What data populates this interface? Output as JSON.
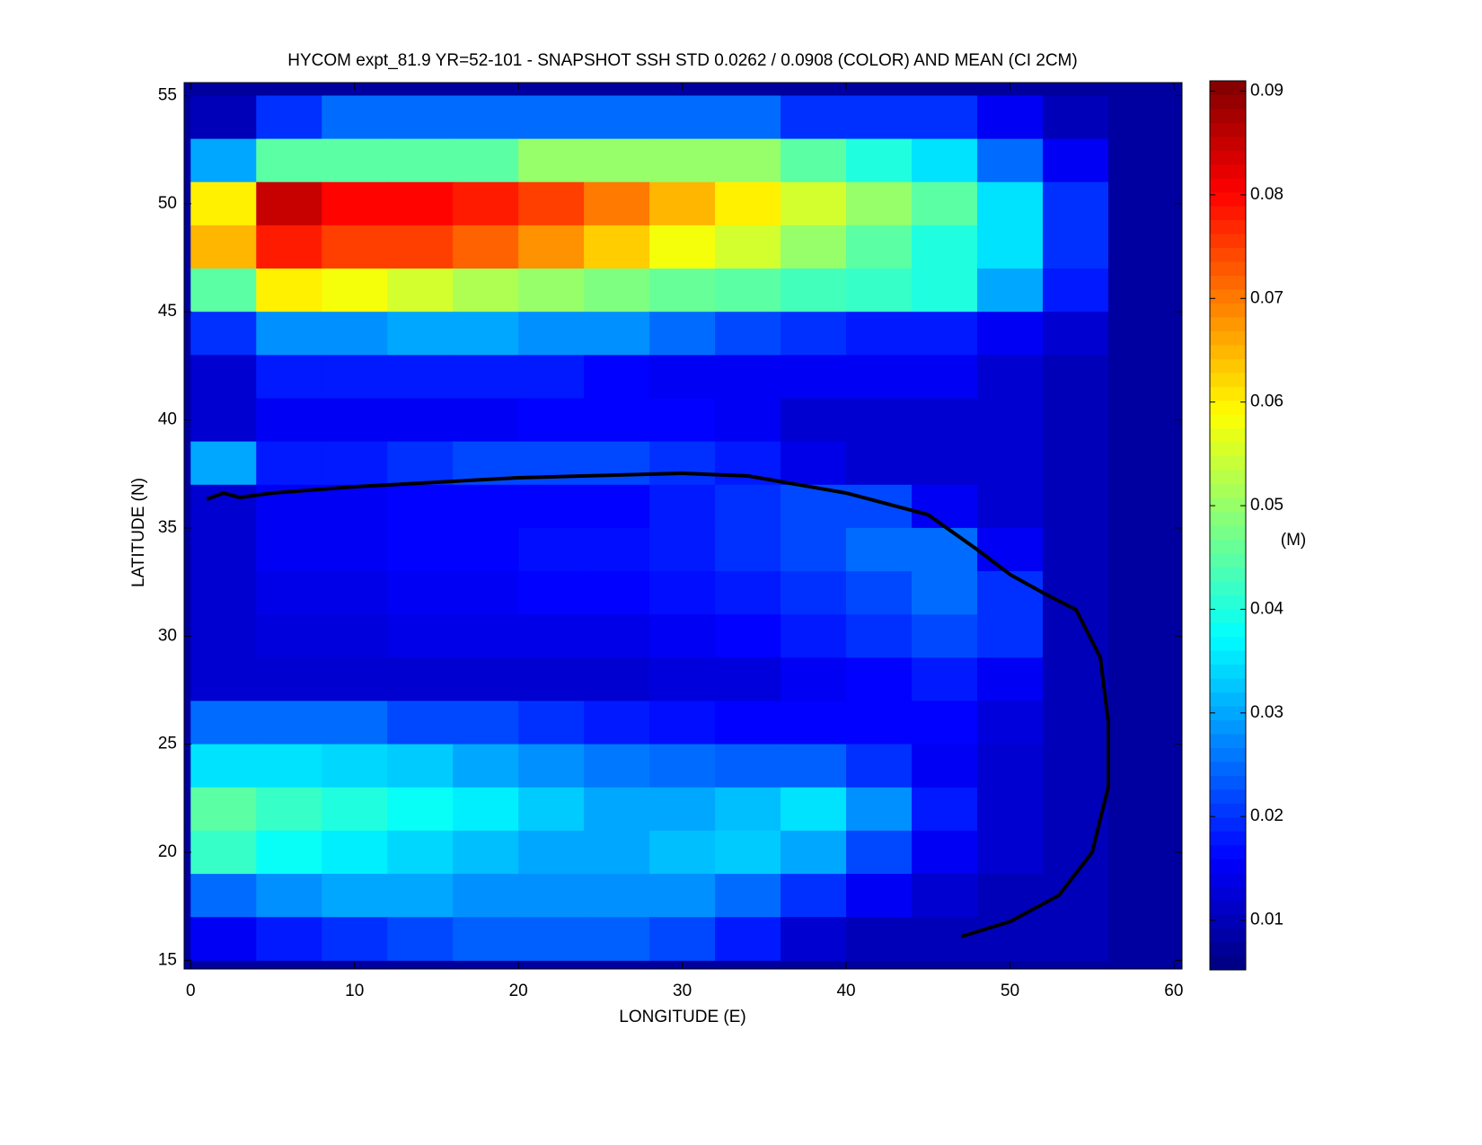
{
  "chart_data": {
    "type": "heatmap",
    "title": "HYCOM expt_81.9 YR=52-101 - SNAPSHOT SSH STD 0.0262 / 0.0908 (COLOR) AND MEAN (CI 2CM)",
    "x_label": "LONGITUDE (E)",
    "y_label": "LATITUDE (N)",
    "colorbar_label": "(M)",
    "colormap": "jet",
    "x": [
      2,
      6,
      10,
      14,
      18,
      22,
      26,
      30,
      34,
      38,
      42,
      46,
      50,
      54,
      58
    ],
    "y": [
      54,
      52,
      50,
      48,
      46,
      44,
      42,
      40,
      38,
      36,
      34,
      32,
      30,
      28,
      26,
      24,
      22,
      20,
      18,
      16
    ],
    "values": [
      [
        0.01,
        0.02,
        0.025,
        0.025,
        0.025,
        0.025,
        0.025,
        0.025,
        0.025,
        0.02,
        0.02,
        0.02,
        0.015,
        0.01,
        0.008
      ],
      [
        0.03,
        0.045,
        0.045,
        0.045,
        0.045,
        0.05,
        0.05,
        0.05,
        0.05,
        0.045,
        0.04,
        0.035,
        0.025,
        0.015,
        0.008
      ],
      [
        0.06,
        0.085,
        0.08,
        0.08,
        0.078,
        0.075,
        0.07,
        0.065,
        0.06,
        0.055,
        0.05,
        0.045,
        0.035,
        0.02,
        0.008
      ],
      [
        0.065,
        0.078,
        0.075,
        0.075,
        0.072,
        0.068,
        0.063,
        0.058,
        0.055,
        0.05,
        0.045,
        0.04,
        0.035,
        0.02,
        0.008
      ],
      [
        0.045,
        0.06,
        0.058,
        0.055,
        0.052,
        0.05,
        0.048,
        0.046,
        0.045,
        0.043,
        0.042,
        0.04,
        0.03,
        0.018,
        0.008
      ],
      [
        0.02,
        0.028,
        0.028,
        0.03,
        0.03,
        0.028,
        0.028,
        0.025,
        0.022,
        0.02,
        0.018,
        0.018,
        0.015,
        0.012,
        0.008
      ],
      [
        0.012,
        0.018,
        0.018,
        0.018,
        0.018,
        0.018,
        0.016,
        0.015,
        0.015,
        0.015,
        0.015,
        0.015,
        0.012,
        0.01,
        0.008
      ],
      [
        0.012,
        0.015,
        0.015,
        0.015,
        0.015,
        0.016,
        0.016,
        0.016,
        0.015,
        0.012,
        0.012,
        0.012,
        0.012,
        0.01,
        0.008
      ],
      [
        0.03,
        0.018,
        0.018,
        0.02,
        0.022,
        0.022,
        0.022,
        0.02,
        0.018,
        0.014,
        0.012,
        0.012,
        0.012,
        0.01,
        0.008
      ],
      [
        0.012,
        0.015,
        0.015,
        0.016,
        0.016,
        0.016,
        0.016,
        0.018,
        0.02,
        0.022,
        0.022,
        0.015,
        0.012,
        0.01,
        0.008
      ],
      [
        0.012,
        0.015,
        0.015,
        0.016,
        0.016,
        0.017,
        0.017,
        0.018,
        0.02,
        0.022,
        0.025,
        0.025,
        0.015,
        0.01,
        0.008
      ],
      [
        0.012,
        0.014,
        0.014,
        0.015,
        0.015,
        0.016,
        0.016,
        0.017,
        0.018,
        0.02,
        0.022,
        0.025,
        0.02,
        0.01,
        0.008
      ],
      [
        0.012,
        0.013,
        0.013,
        0.014,
        0.014,
        0.014,
        0.014,
        0.015,
        0.016,
        0.018,
        0.02,
        0.022,
        0.02,
        0.01,
        0.008
      ],
      [
        0.012,
        0.012,
        0.012,
        0.012,
        0.012,
        0.012,
        0.012,
        0.013,
        0.013,
        0.015,
        0.016,
        0.018,
        0.015,
        0.01,
        0.008
      ],
      [
        0.025,
        0.025,
        0.025,
        0.022,
        0.022,
        0.02,
        0.018,
        0.017,
        0.016,
        0.016,
        0.016,
        0.016,
        0.013,
        0.01,
        0.008
      ],
      [
        0.035,
        0.035,
        0.034,
        0.033,
        0.03,
        0.028,
        0.026,
        0.025,
        0.024,
        0.024,
        0.02,
        0.015,
        0.012,
        0.01,
        0.008
      ],
      [
        0.045,
        0.042,
        0.04,
        0.038,
        0.036,
        0.033,
        0.03,
        0.03,
        0.032,
        0.035,
        0.028,
        0.018,
        0.012,
        0.01,
        0.008
      ],
      [
        0.042,
        0.038,
        0.036,
        0.034,
        0.032,
        0.03,
        0.03,
        0.032,
        0.033,
        0.03,
        0.022,
        0.015,
        0.012,
        0.01,
        0.008
      ],
      [
        0.025,
        0.028,
        0.03,
        0.03,
        0.028,
        0.028,
        0.028,
        0.028,
        0.025,
        0.02,
        0.015,
        0.012,
        0.01,
        0.01,
        0.008
      ],
      [
        0.015,
        0.018,
        0.02,
        0.022,
        0.024,
        0.024,
        0.024,
        0.022,
        0.018,
        0.012,
        0.01,
        0.01,
        0.01,
        0.01,
        0.008
      ]
    ],
    "xlim": [
      -0.4,
      60.5
    ],
    "ylim": [
      14.6,
      55.6
    ],
    "xticks": [
      0,
      10,
      20,
      30,
      40,
      50,
      60
    ],
    "yticks": [
      15,
      20,
      25,
      30,
      35,
      40,
      45,
      50,
      55
    ],
    "clim": [
      0.0052,
      0.091
    ],
    "cticks": [
      0.01,
      0.02,
      0.03,
      0.04,
      0.05,
      0.06,
      0.07,
      0.08,
      0.09
    ]
  }
}
